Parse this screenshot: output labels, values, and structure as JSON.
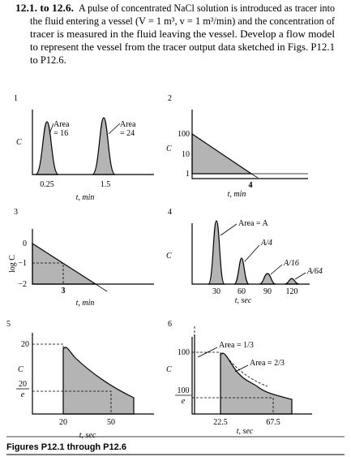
{
  "heading": "12.1. to 12.6.",
  "lines": [
    "A pulse of concentrated NaCl solution is introduced as tracer into",
    "the fluid entering a vessel (V = 1 m³, v = 1 m³/min) and the concentration of",
    "tracer is measured in the fluid leaving the vessel. Develop a flow model",
    "to represent the vessel from the tracer output data sketched in Figs. P12.1",
    "to P12.6."
  ],
  "figures": [
    {
      "number": "1",
      "y_label": "C",
      "x_label": "t, min",
      "x_ticks": [
        "0.25",
        "1.5"
      ],
      "annotations": [
        [
          "Area",
          "= 16"
        ],
        [
          "Area",
          "= 24"
        ]
      ]
    },
    {
      "number": "2",
      "y_label": "C",
      "x_label": "t, min",
      "y_ticks": [
        "100",
        "10",
        "1"
      ],
      "x_ticks": [
        "4"
      ]
    },
    {
      "number": "3",
      "y_label": "log C",
      "x_label": "t, min",
      "y_ticks": [
        "0",
        "−1",
        "−2"
      ],
      "x_ticks": [
        "3"
      ]
    },
    {
      "number": "4",
      "y_label": "C",
      "x_label": "t, sec",
      "x_ticks": [
        "30",
        "60",
        "90",
        "120"
      ],
      "annotations": [
        "Area = A",
        "A/4",
        "A/16",
        "A/64"
      ]
    },
    {
      "number": "5",
      "y_label": "C",
      "x_label": "t, sec",
      "y_ticks": [
        "20",
        {
          "numerator": "20",
          "denominator": "e"
        }
      ],
      "x_ticks": [
        "20",
        "50"
      ]
    },
    {
      "number": "6",
      "y_label": "C",
      "x_label": "t, sec",
      "y_ticks": [
        "100",
        {
          "numerator": "100",
          "denominator": "e"
        }
      ],
      "x_ticks": [
        "22.5",
        "67.5"
      ],
      "annotations": [
        "Area = 1/3",
        "Area = 2/3"
      ]
    }
  ],
  "caption": "Figures P12.1 through P12.6"
}
